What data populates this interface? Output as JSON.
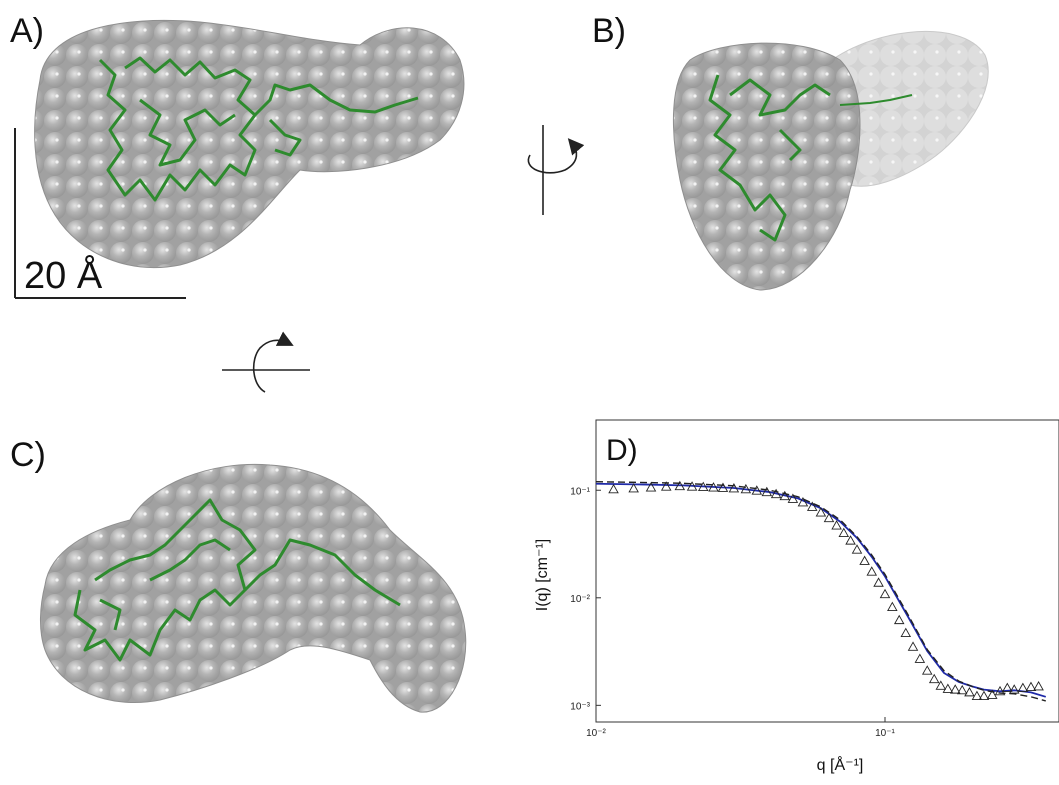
{
  "figure": {
    "panels": {
      "A": "A)",
      "B": "B)",
      "C": "C)",
      "D": "D)"
    },
    "scale_bar_label": "20 Å",
    "colors": {
      "envelope": "#a8a8a8",
      "backbone": "#2e8b2e",
      "fit_line": "#1f2aa8",
      "dashed_fit": "#222222"
    }
  },
  "chart_data": {
    "type": "scatter",
    "title": "",
    "xlabel": "q [Å⁻¹]",
    "ylabel": "I(q) [cm⁻¹]",
    "xscale": "log",
    "yscale": "log",
    "xlim": [
      0.01,
      0.4
    ],
    "ylim": [
      0.0007,
      0.45
    ],
    "x_ticks": [
      {
        "v": 0.01,
        "label": "10⁻²"
      },
      {
        "v": 0.1,
        "label": "10⁻¹"
      }
    ],
    "y_ticks": [
      {
        "v": 0.1,
        "label": "10⁻¹"
      },
      {
        "v": 0.01,
        "label": "10⁻²"
      },
      {
        "v": 0.001,
        "label": "10⁻³"
      }
    ],
    "series": [
      {
        "kind": "points",
        "marker": "triangle-open",
        "x": [
          0.0115,
          0.0135,
          0.0155,
          0.0175,
          0.0195,
          0.0215,
          0.0235,
          0.0255,
          0.0275,
          0.03,
          0.033,
          0.036,
          0.039,
          0.042,
          0.045,
          0.048,
          0.052,
          0.056,
          0.06,
          0.064,
          0.068,
          0.072,
          0.076,
          0.08,
          0.085,
          0.09,
          0.095,
          0.1,
          0.106,
          0.112,
          0.118,
          0.125,
          0.132,
          0.14,
          0.148,
          0.156,
          0.165,
          0.175,
          0.185,
          0.196,
          0.208,
          0.22,
          0.235,
          0.25,
          0.265,
          0.28,
          0.3,
          0.32,
          0.34
        ],
        "y": [
          0.102,
          0.104,
          0.106,
          0.108,
          0.109,
          0.108,
          0.107,
          0.106,
          0.105,
          0.104,
          0.102,
          0.099,
          0.096,
          0.092,
          0.088,
          0.083,
          0.077,
          0.07,
          0.062,
          0.055,
          0.047,
          0.04,
          0.034,
          0.028,
          0.022,
          0.0175,
          0.0138,
          0.0108,
          0.0082,
          0.0062,
          0.0047,
          0.0035,
          0.0027,
          0.0021,
          0.00175,
          0.00152,
          0.00142,
          0.0014,
          0.00138,
          0.00132,
          0.00122,
          0.00122,
          0.00125,
          0.00135,
          0.00145,
          0.0014,
          0.00145,
          0.00148,
          0.0015
        ]
      },
      {
        "kind": "line",
        "style": "solid",
        "x": [
          0.01,
          0.015,
          0.02,
          0.03,
          0.04,
          0.05,
          0.06,
          0.07,
          0.08,
          0.09,
          0.1,
          0.12,
          0.14,
          0.16,
          0.18,
          0.2,
          0.22,
          0.25,
          0.28,
          0.32,
          0.36
        ],
        "y": [
          0.115,
          0.113,
          0.111,
          0.105,
          0.096,
          0.084,
          0.068,
          0.051,
          0.036,
          0.024,
          0.0158,
          0.0067,
          0.0032,
          0.002,
          0.00165,
          0.0015,
          0.0014,
          0.00135,
          0.00138,
          0.00132,
          0.0012
        ]
      },
      {
        "kind": "line",
        "style": "dashed",
        "x": [
          0.01,
          0.015,
          0.02,
          0.03,
          0.04,
          0.05,
          0.06,
          0.07,
          0.08,
          0.09,
          0.1,
          0.12,
          0.14,
          0.16,
          0.18,
          0.2,
          0.22,
          0.25,
          0.28,
          0.32,
          0.36
        ],
        "y": [
          0.12,
          0.118,
          0.116,
          0.11,
          0.1,
          0.087,
          0.07,
          0.053,
          0.037,
          0.025,
          0.0165,
          0.007,
          0.0033,
          0.0021,
          0.00168,
          0.0015,
          0.00138,
          0.0013,
          0.00128,
          0.0012,
          0.0011
        ]
      }
    ]
  }
}
